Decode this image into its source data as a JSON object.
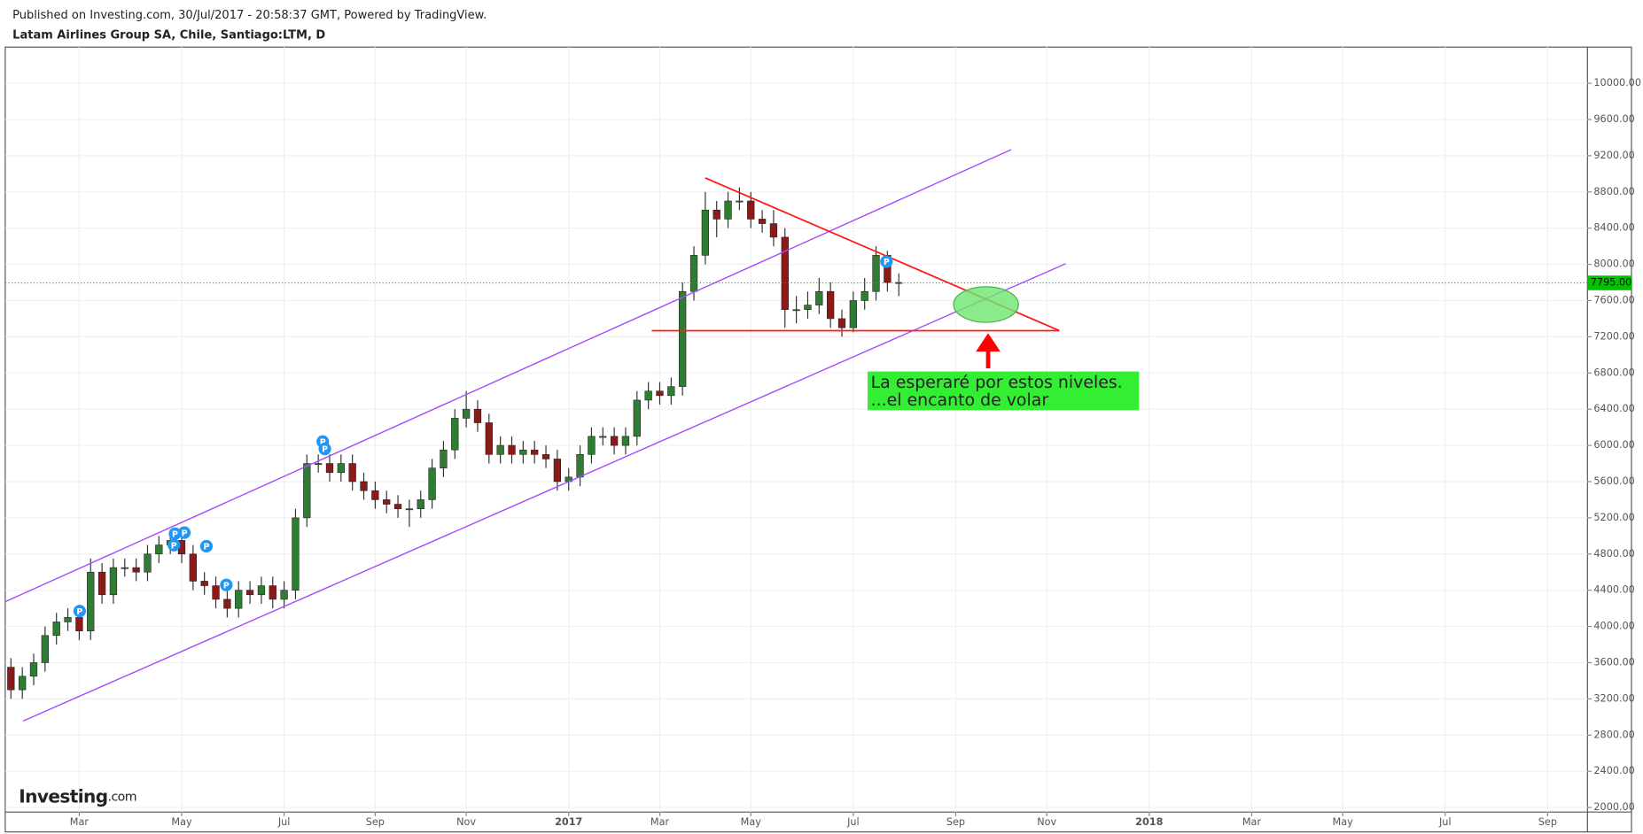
{
  "chart_data": {
    "type": "candlestick",
    "published": "Published on Investing.com, 30/Jul/2017 - 20:58:37 GMT, Powered by TradingView.",
    "title": "Latam Airlines Group SA, Chile, Santiago:LTM, D",
    "categories": [
      null,
      null,
      null,
      null,
      null,
      null,
      "Mar",
      null,
      null,
      null,
      null,
      null,
      null,
      null,
      null,
      "May",
      null,
      null,
      null,
      null,
      null,
      null,
      null,
      null,
      "Jul",
      null,
      null,
      null,
      null,
      null,
      null,
      null,
      "Sep",
      null,
      null,
      null,
      null,
      null,
      null,
      null,
      "Nov",
      null,
      null,
      null,
      null,
      null,
      null,
      null,
      null,
      "2017",
      null,
      null,
      null,
      null,
      null,
      null,
      null,
      "Mar",
      null,
      null,
      null,
      null,
      null,
      null,
      null,
      "May",
      null,
      null,
      null,
      null,
      null,
      null,
      null,
      null,
      "Jul",
      null,
      null,
      null,
      null,
      null,
      null,
      null,
      null,
      "Sep",
      null,
      null,
      null,
      null,
      null,
      null,
      null,
      "Nov",
      null,
      null,
      null,
      null,
      null,
      null,
      null,
      null,
      "2018",
      null,
      null,
      null,
      null,
      null,
      null,
      null,
      null,
      "Mar",
      null,
      null,
      null,
      null,
      null,
      null,
      null,
      "May",
      null,
      null,
      null,
      null,
      null,
      null,
      null,
      null,
      "Jul",
      null,
      null,
      null,
      null,
      null,
      null,
      null,
      null,
      "Sep",
      null,
      null,
      null
    ],
    "open": [
      3550,
      3300,
      3450,
      3600,
      3900,
      4050,
      4100,
      3950,
      4600,
      4350,
      4650,
      4650,
      4600,
      4800,
      4900,
      4950,
      4800,
      4500,
      4450,
      4300,
      4200,
      4400,
      4350,
      4450,
      4300,
      4400,
      5200,
      5800,
      5800,
      5700,
      5800,
      5600,
      5500,
      5400,
      5350,
      5300,
      5300,
      5400,
      5750,
      5950,
      6300,
      6400,
      6250,
      5900,
      6000,
      5900,
      5950,
      5900,
      5850,
      5600,
      5650,
      5900,
      6100,
      6100,
      6000,
      6100,
      6500,
      6600,
      6550,
      6650,
      7700,
      8100,
      8600,
      8500,
      8700,
      8700,
      8500,
      8450,
      8300,
      7500,
      7500,
      7550,
      7700,
      7400,
      7300,
      7600,
      7700,
      8100,
      7800,
      null,
      null,
      null,
      null,
      null,
      null,
      null,
      null,
      null,
      null,
      null,
      null,
      null,
      null,
      null,
      null,
      null,
      null,
      null,
      null,
      null,
      null,
      null,
      null,
      null,
      null,
      null,
      null,
      null,
      null,
      null,
      null,
      null,
      null,
      null,
      null,
      null,
      null,
      null,
      null,
      null,
      null,
      null,
      null,
      null,
      null,
      null,
      null,
      null,
      null,
      null,
      null,
      null,
      null,
      null,
      null,
      null,
      null,
      null,
      null
    ],
    "high": [
      3650,
      3550,
      3700,
      4000,
      4150,
      4200,
      4200,
      4750,
      4700,
      4750,
      4750,
      4750,
      4900,
      5000,
      5050,
      5050,
      4900,
      4600,
      4550,
      4400,
      4500,
      4500,
      4550,
      4550,
      4500,
      5300,
      5900,
      5900,
      5900,
      5900,
      5900,
      5700,
      5600,
      5500,
      5450,
      5400,
      5500,
      5850,
      6050,
      6400,
      6600,
      6500,
      6350,
      6100,
      6100,
      6050,
      6050,
      6000,
      5950,
      5750,
      6000,
      6200,
      6200,
      6200,
      6200,
      6600,
      6700,
      6700,
      6750,
      7800,
      8200,
      8800,
      8700,
      8800,
      8850,
      8800,
      8600,
      8600,
      8400,
      7650,
      7700,
      7850,
      7800,
      7500,
      7700,
      7850,
      8200,
      8150,
      7900,
      null,
      null,
      null,
      null,
      null,
      null,
      null,
      null,
      null,
      null,
      null,
      null,
      null,
      null,
      null,
      null,
      null,
      null,
      null,
      null,
      null,
      null,
      null,
      null,
      null,
      null,
      null,
      null,
      null,
      null,
      null,
      null,
      null,
      null,
      null,
      null,
      null,
      null,
      null,
      null,
      null,
      null,
      null,
      null,
      null,
      null,
      null,
      null,
      null,
      null,
      null,
      null,
      null,
      null,
      null,
      null,
      null,
      null,
      null,
      null
    ],
    "low": [
      3200,
      3200,
      3350,
      3500,
      3800,
      3950,
      3850,
      3850,
      4250,
      4250,
      4550,
      4500,
      4500,
      4700,
      4800,
      4700,
      4400,
      4350,
      4200,
      4100,
      4100,
      4250,
      4250,
      4200,
      4200,
      4300,
      5100,
      5700,
      5600,
      5600,
      5500,
      5400,
      5300,
      5250,
      5200,
      5100,
      5200,
      5300,
      5650,
      5850,
      6200,
      6150,
      5800,
      5800,
      5800,
      5800,
      5800,
      5750,
      5500,
      5500,
      5550,
      5800,
      6000,
      5900,
      5900,
      6000,
      6400,
      6450,
      6450,
      6550,
      7600,
      8000,
      8300,
      8400,
      8600,
      8400,
      8350,
      8200,
      7300,
      7350,
      7400,
      7450,
      7300,
      7200,
      7250,
      7500,
      7600,
      7700,
      7650,
      null,
      null,
      null,
      null,
      null,
      null,
      null,
      null,
      null,
      null,
      null,
      null,
      null,
      null,
      null,
      null,
      null,
      null,
      null,
      null,
      null,
      null,
      null,
      null,
      null,
      null,
      null,
      null,
      null,
      null,
      null,
      null,
      null,
      null,
      null,
      null,
      null,
      null,
      null,
      null,
      null,
      null,
      null,
      null,
      null,
      null,
      null,
      null,
      null,
      null,
      null,
      null,
      null,
      null,
      null,
      null,
      null,
      null,
      null,
      null
    ],
    "close": [
      3300,
      3450,
      3600,
      3900,
      4050,
      4100,
      3950,
      4600,
      4350,
      4650,
      4650,
      4600,
      4800,
      4900,
      4950,
      4800,
      4500,
      4450,
      4300,
      4200,
      4400,
      4350,
      4450,
      4300,
      4400,
      5200,
      5800,
      5800,
      5700,
      5800,
      5600,
      5500,
      5400,
      5350,
      5300,
      5300,
      5400,
      5750,
      5950,
      6300,
      6400,
      6250,
      5900,
      6000,
      5900,
      5950,
      5900,
      5850,
      5600,
      5650,
      5900,
      6100,
      6100,
      6000,
      6100,
      6500,
      6600,
      6550,
      6650,
      7700,
      8100,
      8600,
      8500,
      8700,
      8700,
      8500,
      8450,
      8300,
      7500,
      7500,
      7550,
      7700,
      7400,
      7300,
      7600,
      7700,
      8100,
      7800,
      7795,
      null,
      null,
      null,
      null,
      null,
      null,
      null,
      null,
      null,
      null,
      null,
      null,
      null,
      null,
      null,
      null,
      null,
      null,
      null,
      null,
      null,
      null,
      null,
      null,
      null,
      null,
      null,
      null,
      null,
      null,
      null,
      null,
      null,
      null,
      null,
      null,
      null,
      null,
      null,
      null,
      null,
      null,
      null,
      null,
      null,
      null,
      null,
      null,
      null,
      null,
      null,
      null,
      null,
      null,
      null,
      null,
      null,
      null,
      null,
      null
    ],
    "up_color": "#2e7d32",
    "down_color": "#8b1a1a",
    "ylim": [
      1950,
      10400
    ],
    "yticks": [
      {
        "value": 2000,
        "label": "2000.00"
      },
      {
        "value": 2400,
        "label": "2400.00"
      },
      {
        "value": 2800,
        "label": "2800.00"
      },
      {
        "value": 3200,
        "label": "3200.00"
      },
      {
        "value": 3600,
        "label": "3600.00"
      },
      {
        "value": 4000,
        "label": "4000.00"
      },
      {
        "value": 4400,
        "label": "4400.00"
      },
      {
        "value": 4800,
        "label": "4800.00"
      },
      {
        "value": 5200,
        "label": "5200.00"
      },
      {
        "value": 5600,
        "label": "5600.00"
      },
      {
        "value": 6000,
        "label": "6000.00"
      },
      {
        "value": 6400,
        "label": "6400.00"
      },
      {
        "value": 6800,
        "label": "6800.00"
      },
      {
        "value": 7200,
        "label": "7200.00"
      },
      {
        "value": 7600,
        "label": "7600.00"
      },
      {
        "value": 8000,
        "label": "8000.00"
      },
      {
        "value": 8400,
        "label": "8400.00"
      },
      {
        "value": 8800,
        "label": "8800.00"
      },
      {
        "value": 9200,
        "label": "9200.00"
      },
      {
        "value": 9600,
        "label": "9600.00"
      },
      {
        "value": 10000,
        "label": "10000.00"
      }
    ],
    "grid": true,
    "last_price": {
      "value": 7795,
      "label": "7795.00"
    },
    "last_price_color": "#00c400",
    "marker_label": "P",
    "annotation": [
      "La esperaré por estos niveles.",
      "...el encanto de volar"
    ],
    "logo": {
      "name": "Investing",
      "suffix": ".com"
    }
  }
}
